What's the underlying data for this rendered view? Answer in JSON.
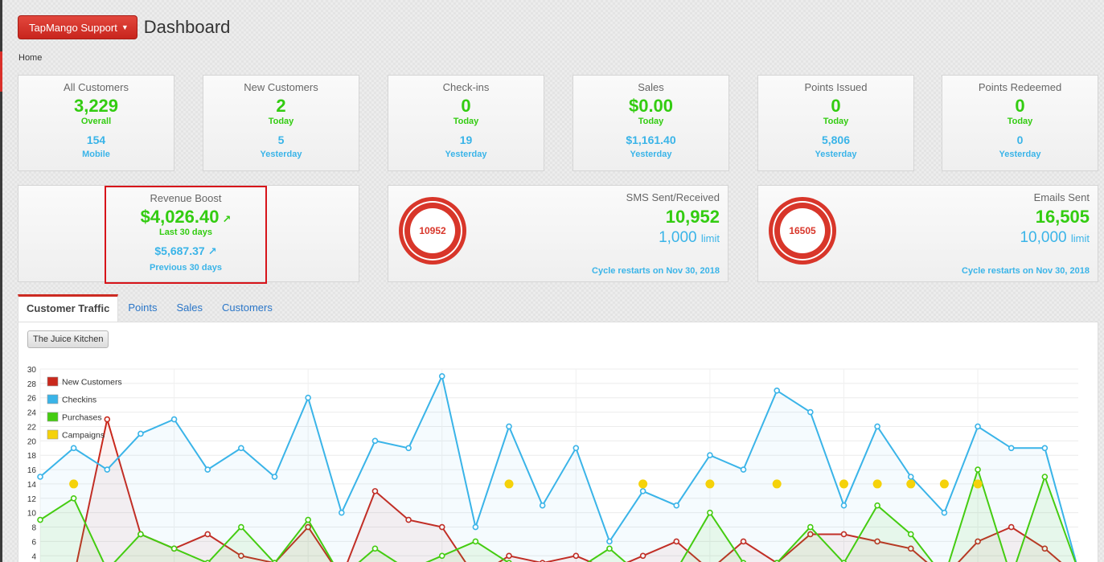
{
  "header": {
    "brand_label": "TapMango Support",
    "title": "Dashboard"
  },
  "breadcrumb": "Home",
  "stats": [
    {
      "title": "All Customers",
      "value": "3,229",
      "value_sub": "Overall",
      "secondary": "154",
      "secondary_sub": "Mobile"
    },
    {
      "title": "New Customers",
      "value": "2",
      "value_sub": "Today",
      "secondary": "5",
      "secondary_sub": "Yesterday"
    },
    {
      "title": "Check-ins",
      "value": "0",
      "value_sub": "Today",
      "secondary": "19",
      "secondary_sub": "Yesterday"
    },
    {
      "title": "Sales",
      "value": "$0.00",
      "value_sub": "Today",
      "secondary": "$1,161.40",
      "secondary_sub": "Yesterday"
    },
    {
      "title": "Points Issued",
      "value": "0",
      "value_sub": "Today",
      "secondary": "5,806",
      "secondary_sub": "Yesterday"
    },
    {
      "title": "Points Redeemed",
      "value": "0",
      "value_sub": "Today",
      "secondary": "0",
      "secondary_sub": "Yesterday"
    }
  ],
  "revenue": {
    "title": "Revenue Boost",
    "value": "$4,026.40",
    "value_sub": "Last 30 days",
    "previous": "$5,687.37",
    "previous_sub": "Previous 30 days"
  },
  "sms": {
    "title": "SMS Sent/Received",
    "donut_label": "10952",
    "value": "10,952",
    "limit": "1,000",
    "limit_word": "limit",
    "cycle": "Cycle restarts on Nov 30, 2018"
  },
  "emails": {
    "title": "Emails Sent",
    "donut_label": "16505",
    "value": "16,505",
    "limit": "10,000",
    "limit_word": "limit",
    "cycle": "Cycle restarts on Nov 30, 2018"
  },
  "tabs": [
    "Customer Traffic",
    "Points",
    "Sales",
    "Customers"
  ],
  "store_button": "The Juice Kitchen",
  "colors": {
    "green": "#33cc11",
    "blue": "#3ab4e8",
    "red": "#d8362a",
    "accent_red": "#d7141a"
  },
  "chart_data": {
    "type": "line",
    "y_ticks": [
      "4",
      "6",
      "8",
      "10",
      "12",
      "14",
      "16",
      "18",
      "20",
      "22",
      "24",
      "26",
      "28",
      "30"
    ],
    "ylim": [
      0,
      30
    ],
    "grid": true,
    "legend_position": "top-left",
    "series": [
      {
        "name": "New Customers",
        "color": "#c9281c",
        "values": [
          2,
          1,
          23,
          7,
          5,
          7,
          4,
          3,
          8,
          1,
          13,
          9,
          8,
          1,
          4,
          3,
          4,
          2,
          4,
          6,
          2,
          6,
          3,
          7,
          7,
          6,
          5,
          1,
          6,
          8,
          5,
          1
        ]
      },
      {
        "name": "Checkins",
        "color": "#3ab4e8",
        "values": [
          15,
          19,
          16,
          21,
          23,
          16,
          19,
          15,
          26,
          10,
          20,
          19,
          29,
          8,
          22,
          11,
          19,
          6,
          13,
          11,
          18,
          16,
          27,
          24,
          11,
          22,
          15,
          10,
          22,
          19,
          19,
          2
        ]
      },
      {
        "name": "Purchases",
        "color": "#44cc11",
        "values": [
          9,
          12,
          2,
          7,
          5,
          3,
          8,
          3,
          9,
          1,
          5,
          2,
          4,
          6,
          3,
          2,
          2,
          5,
          1,
          2,
          10,
          3,
          3,
          8,
          3,
          11,
          7,
          1,
          16,
          1,
          15,
          2
        ]
      },
      {
        "name": "Campaigns",
        "color": "#f5d20a",
        "points": [
          [
            1,
            14
          ],
          [
            14,
            14
          ],
          [
            18,
            14
          ],
          [
            20,
            14
          ],
          [
            22,
            14
          ],
          [
            24,
            14
          ],
          [
            25,
            14
          ],
          [
            26,
            14
          ],
          [
            27,
            14
          ],
          [
            28,
            14
          ]
        ]
      }
    ]
  }
}
